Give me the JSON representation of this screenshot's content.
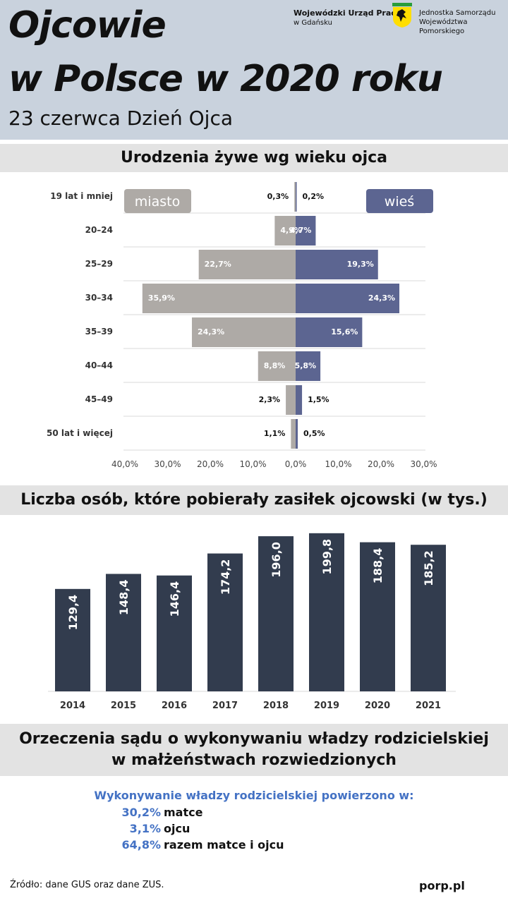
{
  "header": {
    "title_line1": "Ojcowie",
    "title_line2": "w Polsce w 2020 roku",
    "subtitle": "23 czerwca Dzień Ojca",
    "org1_line1": "Wojewódzki Urząd Pracy",
    "org1_line2": "w Gdańsku",
    "org2_line1": "Jednostka Samorządu",
    "org2_line2": "Województwa Pomorskiego",
    "logo_icon": "griffin-crest-icon",
    "logo_color": "#ffde00"
  },
  "section1": {
    "heading": "Urodzenia żywe wg wieku ojca"
  },
  "section2": {
    "heading": "Liczba osób, które pobierały zasiłek ojcowski (w tys.)"
  },
  "section3": {
    "heading_line1": "Orzeczenia sądu o wykonywaniu władzy rodzicielskiej",
    "heading_line2": "w małżeństwach rozwiedzionych",
    "lead": "Wykonywanie władzy rodzicielskiej powierzono w:",
    "items": [
      {
        "value": "30,2%",
        "label": "matce"
      },
      {
        "value": "3,1%",
        "label": "ojcu"
      },
      {
        "value": "64,8%",
        "label": "razem matce i ojcu"
      }
    ]
  },
  "footer": {
    "source": "Źródło: dane GUS oraz dane ZUS.",
    "url": "porp.pl"
  },
  "chart_data": [
    {
      "type": "bar",
      "orientation": "horizontal-pyramid",
      "categories": [
        "19 lat i mniej",
        "20–24",
        "25–29",
        "30–34",
        "35–39",
        "40–44",
        "45–49",
        "50 lat i więcej"
      ],
      "series": [
        {
          "name": "miasto",
          "values": [
            0.3,
            4.9,
            22.7,
            35.9,
            24.3,
            8.8,
            2.3,
            1.1
          ],
          "labels": [
            "0,3%",
            "4,9%",
            "22,7%",
            "35,9%",
            "24,3%",
            "8,8%",
            "2,3%",
            "1,1%"
          ],
          "color": "#aeaaa6"
        },
        {
          "name": "wieś",
          "values": [
            0.2,
            4.7,
            19.3,
            24.3,
            15.6,
            5.8,
            1.5,
            0.5
          ],
          "labels": [
            "0,2%",
            "4,7%",
            "19,3%",
            "24,3%",
            "15,6%",
            "5,8%",
            "1,5%",
            "0,5%"
          ],
          "color": "#5c6591"
        }
      ],
      "xlim": [
        -40,
        30
      ],
      "xticks": [
        "40,0%",
        "30,0%",
        "20,0%",
        "10,0%",
        "0,0%",
        "10,0%",
        "20,0%",
        "30,0%"
      ],
      "grid": true,
      "legend": "inside-top"
    },
    {
      "type": "bar",
      "categories": [
        "2014",
        "2015",
        "2016",
        "2017",
        "2018",
        "2019",
        "2020",
        "2021"
      ],
      "values": [
        129.4,
        148.4,
        146.4,
        174.2,
        196.0,
        199.8,
        188.4,
        185.2
      ],
      "labels": [
        "129,4",
        "148,4",
        "146,4",
        "174,2",
        "196,0",
        "199,8",
        "188,4",
        "185,2"
      ],
      "color": "#323c4e",
      "ylim": [
        0,
        205
      ],
      "grid": false
    }
  ]
}
